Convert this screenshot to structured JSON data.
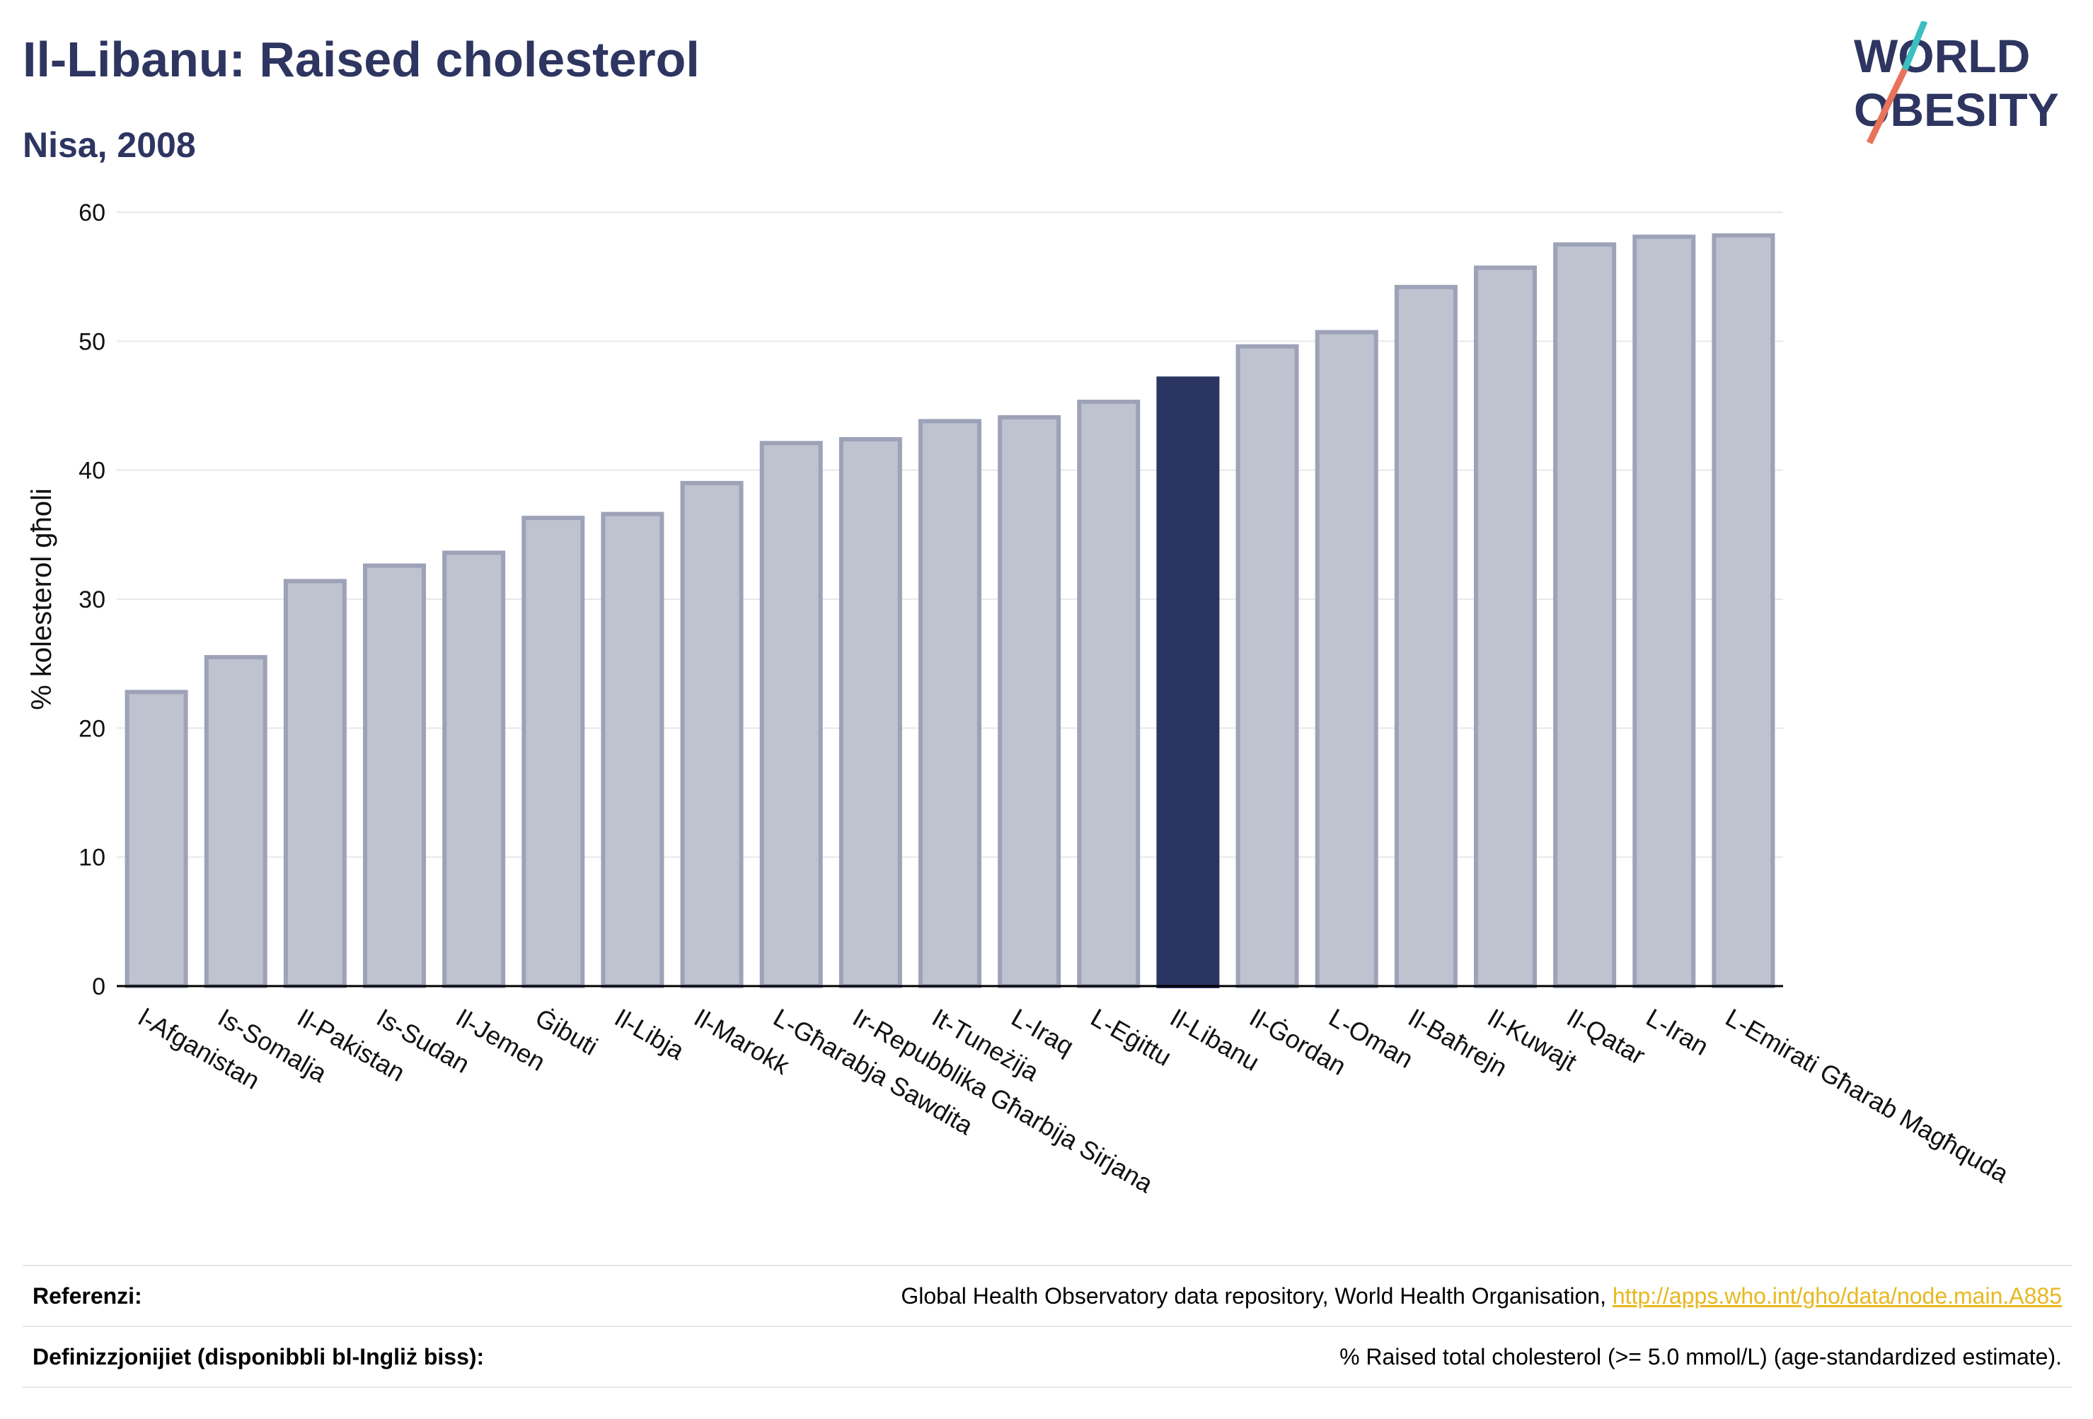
{
  "title": "Il-Libanu: Raised cholesterol",
  "subtitle": "Nisa, 2008",
  "logo": {
    "line1": "WORLD",
    "line2": "OBESITY"
  },
  "footer": {
    "references_label": "Referenzi:",
    "references_text": "Global Health Observatory data repository, World Health Organisation,",
    "references_link": "http://apps.who.int/gho/data/node.main.A885",
    "definitions_label": "Definizzjonijiet (disponibbli bl-Ingliż biss):",
    "definitions_text": "% Raised total cholesterol (>= 5.0 mmol/L) (age-standardized estimate)."
  },
  "colors": {
    "bar": "#bfc2cf",
    "bar_border": "#9da2b8",
    "highlight": "#2a3561",
    "title": "#2d3560",
    "link": "#e8b820"
  },
  "chart_data": {
    "type": "bar",
    "title": "Il-Libanu: Raised cholesterol",
    "subtitle": "Nisa, 2008",
    "xlabel": "",
    "ylabel": "% kolesterol għoli",
    "ylim": [
      0,
      60
    ],
    "yticks": [
      0,
      10,
      20,
      30,
      40,
      50,
      60
    ],
    "grid": true,
    "highlight": "Il-Libanu",
    "categories": [
      "l-Afganistan",
      "Is-Somalja",
      "Il-Pakistan",
      "Is-Sudan",
      "Il-Jemen",
      "Ġibuti",
      "Il-Libja",
      "Il-Marokk",
      "L-Għarabja Sawdita",
      "Ir-Repubblika Għarbija Sirjana",
      "It-Tuneżija",
      "L-Iraq",
      "L-Eġittu",
      "Il-Libanu",
      "Il-Ġordan",
      "L-Oman",
      "Il-Baħrejn",
      "Il-Kuwajt",
      "Il-Qatar",
      "L-Iran",
      "L-Emirati Għarab Magħquda"
    ],
    "values": [
      22.8,
      25.5,
      31.4,
      32.6,
      33.6,
      36.3,
      36.6,
      39.0,
      42.1,
      42.4,
      43.8,
      44.1,
      45.3,
      47.1,
      49.6,
      50.7,
      54.2,
      55.7,
      57.5,
      58.1,
      58.2
    ]
  }
}
